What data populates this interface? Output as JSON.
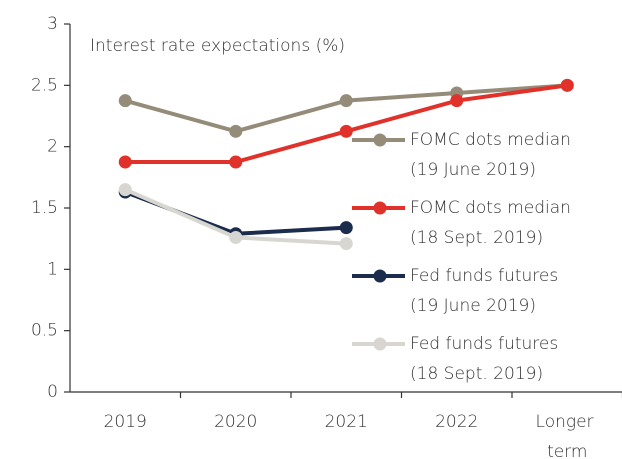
{
  "chart_data": {
    "type": "line",
    "title": "Interest rate expectations (%)",
    "categories": [
      "2019",
      "2020",
      "2021",
      "2022",
      "Longer term"
    ],
    "series": [
      {
        "name": "FOMC dots median (19 June 2019)",
        "color": "#958b79",
        "values": [
          2.375,
          2.125,
          2.375,
          2.4375,
          2.5
        ]
      },
      {
        "name": "FOMC dots median (18 Sept. 2019)",
        "color": "#e0312a",
        "values": [
          1.875,
          1.875,
          2.125,
          2.375,
          2.5
        ]
      },
      {
        "name": "Fed funds futures (19 June 2019)",
        "color": "#1c2c4c",
        "values": [
          1.63,
          1.29,
          1.34,
          null,
          null
        ]
      },
      {
        "name": "Fed funds futures (18 Sept. 2019)",
        "color": "#d8d6d1",
        "values": [
          1.65,
          1.26,
          1.21,
          null,
          null
        ]
      }
    ],
    "ylim": [
      0,
      3
    ],
    "yticks": [
      0,
      0.5,
      1,
      1.5,
      2,
      2.5,
      3
    ],
    "grid": false
  }
}
